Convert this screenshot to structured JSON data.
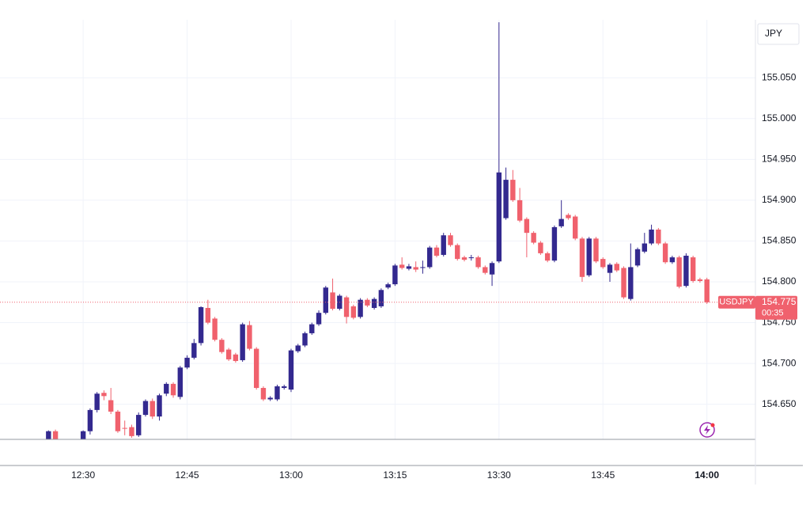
{
  "chart_data": {
    "type": "candlestick",
    "symbol": "USDJPY",
    "currency": "JPY",
    "up_color": "#33298f",
    "down_color": "#f0616d",
    "grid": true,
    "xlim": [
      "12:18",
      "14:07"
    ],
    "ylim": [
      154.607,
      155.121
    ],
    "yticks": [
      {
        "value": 154.65,
        "label": "154.650"
      },
      {
        "value": 154.7,
        "label": "154.700"
      },
      {
        "value": 154.75,
        "label": "154.750"
      },
      {
        "value": 154.8,
        "label": "154.800"
      },
      {
        "value": 154.85,
        "label": "154.850"
      },
      {
        "value": 154.9,
        "label": "154.900"
      },
      {
        "value": 154.95,
        "label": "154.950"
      },
      {
        "value": 155.0,
        "label": "155.000"
      },
      {
        "value": 155.05,
        "label": "155.050"
      }
    ],
    "xticks": [
      "12:30",
      "12:45",
      "13:00",
      "13:15",
      "13:30",
      "13:45",
      "14:00"
    ],
    "last_price": {
      "value": 154.775,
      "label": "154.775"
    },
    "countdown": "00:35",
    "x": [
      "12:25",
      "12:26",
      "12:30",
      "12:31",
      "12:32",
      "12:33",
      "12:34",
      "12:35",
      "12:36",
      "12:37",
      "12:38",
      "12:39",
      "12:40",
      "12:41",
      "12:42",
      "12:43",
      "12:44",
      "12:45",
      "12:46",
      "12:47",
      "12:48",
      "12:49",
      "12:50",
      "12:51",
      "12:52",
      "12:53",
      "12:54",
      "12:55",
      "12:56",
      "12:57",
      "12:58",
      "12:59",
      "13:00",
      "13:01",
      "13:02",
      "13:03",
      "13:04",
      "13:05",
      "13:06",
      "13:07",
      "13:08",
      "13:09",
      "13:10",
      "13:11",
      "13:12",
      "13:13",
      "13:14",
      "13:15",
      "13:16",
      "13:17",
      "13:18",
      "13:19",
      "13:20",
      "13:21",
      "13:22",
      "13:23",
      "13:24",
      "13:25",
      "13:26",
      "13:27",
      "13:28",
      "13:29",
      "13:30",
      "13:31",
      "13:32",
      "13:33",
      "13:34",
      "13:35",
      "13:36",
      "13:37",
      "13:38",
      "13:39",
      "13:40",
      "13:41",
      "13:42",
      "13:43",
      "13:44",
      "13:45",
      "13:46",
      "13:47",
      "13:48",
      "13:49",
      "13:50",
      "13:51",
      "13:52",
      "13:53",
      "13:54",
      "13:55",
      "13:56",
      "13:57",
      "13:58",
      "13:59",
      "14:00"
    ],
    "open": [
      154.605,
      154.617,
      154.605,
      154.617,
      154.643,
      154.664,
      154.655,
      154.641,
      154.621,
      154.622,
      154.612,
      154.637,
      154.654,
      154.635,
      154.663,
      154.675,
      154.659,
      154.695,
      154.707,
      154.725,
      154.768,
      154.755,
      154.729,
      154.717,
      154.711,
      154.704,
      154.747,
      154.718,
      154.67,
      154.656,
      154.656,
      154.67,
      154.668,
      154.715,
      154.722,
      154.737,
      154.748,
      154.762,
      154.787,
      154.767,
      154.781,
      154.77,
      154.757,
      154.778,
      154.768,
      154.77,
      154.793,
      154.797,
      154.821,
      154.816,
      154.818,
      154.817,
      154.818,
      154.842,
      154.833,
      154.857,
      154.845,
      154.83,
      154.829,
      154.83,
      154.818,
      154.809,
      154.825,
      154.878,
      154.925,
      154.9,
      154.877,
      154.86,
      154.848,
      154.835,
      154.826,
      154.868,
      154.882,
      154.88,
      154.853,
      154.808,
      154.853,
      154.828,
      154.811,
      154.822,
      154.817,
      154.779,
      154.82,
      154.837,
      154.847,
      154.864,
      154.847,
      154.824,
      154.83,
      154.795,
      154.83,
      154.803,
      154.803
    ],
    "high": [
      154.618,
      154.619,
      154.618,
      154.645,
      154.665,
      154.667,
      154.67,
      154.643,
      154.63,
      154.625,
      154.64,
      154.656,
      154.657,
      154.663,
      154.677,
      154.677,
      154.697,
      154.71,
      154.73,
      154.77,
      154.778,
      154.757,
      154.731,
      154.719,
      154.713,
      154.75,
      154.752,
      154.72,
      154.672,
      154.66,
      154.674,
      154.674,
      154.718,
      154.724,
      154.739,
      154.75,
      154.765,
      154.795,
      154.804,
      154.785,
      154.783,
      154.772,
      154.78,
      154.78,
      154.781,
      154.792,
      154.799,
      154.822,
      154.83,
      154.822,
      154.825,
      154.826,
      154.844,
      154.845,
      154.86,
      154.86,
      154.847,
      154.832,
      154.833,
      154.832,
      154.82,
      154.825,
      155.118,
      154.94,
      154.937,
      154.915,
      154.879,
      154.862,
      154.85,
      154.837,
      154.869,
      154.9,
      154.884,
      154.882,
      154.855,
      154.855,
      154.855,
      154.83,
      154.823,
      154.824,
      154.819,
      154.847,
      154.842,
      154.86,
      154.87,
      154.866,
      154.849,
      154.832,
      154.832,
      154.835,
      154.832,
      154.805,
      154.805
    ],
    "low": [
      154.6,
      154.6,
      154.6,
      154.613,
      154.64,
      154.655,
      154.638,
      154.615,
      154.612,
      154.609,
      154.61,
      154.635,
      154.632,
      154.63,
      154.66,
      154.658,
      154.656,
      154.693,
      154.705,
      154.722,
      154.748,
      154.727,
      154.712,
      154.703,
      154.701,
      154.702,
      154.716,
      154.668,
      154.654,
      154.654,
      154.654,
      154.668,
      154.665,
      154.713,
      154.72,
      154.735,
      154.746,
      154.76,
      154.765,
      154.765,
      154.749,
      154.754,
      154.755,
      154.769,
      154.766,
      154.768,
      154.791,
      154.795,
      154.815,
      154.814,
      154.812,
      154.81,
      154.816,
      154.83,
      154.831,
      154.843,
      154.826,
      154.825,
      154.826,
      154.816,
      154.809,
      154.795,
      154.823,
      154.876,
      154.898,
      154.873,
      154.83,
      154.846,
      154.833,
      154.824,
      154.824,
      154.866,
      154.876,
      154.851,
      154.8,
      154.806,
      154.823,
      154.816,
      154.8,
      154.812,
      154.779,
      154.777,
      154.818,
      154.835,
      154.845,
      154.845,
      154.822,
      154.822,
      154.792,
      154.793,
      154.799,
      154.799,
      154.773
    ],
    "close": [
      154.617,
      154.605,
      154.617,
      154.643,
      154.663,
      154.66,
      154.641,
      154.617,
      154.62,
      154.611,
      154.637,
      154.654,
      154.635,
      154.661,
      154.675,
      154.661,
      154.695,
      154.707,
      154.725,
      154.769,
      154.75,
      154.729,
      154.714,
      154.705,
      154.703,
      154.748,
      154.718,
      154.67,
      154.656,
      154.658,
      154.672,
      154.672,
      154.716,
      154.722,
      154.737,
      154.748,
      154.762,
      154.793,
      154.767,
      154.783,
      154.757,
      154.756,
      154.778,
      154.771,
      154.779,
      154.79,
      154.797,
      154.82,
      154.817,
      154.819,
      154.815,
      154.818,
      154.842,
      154.832,
      154.857,
      154.845,
      154.828,
      154.827,
      154.83,
      154.818,
      154.811,
      154.823,
      154.934,
      154.925,
      154.9,
      154.875,
      154.86,
      154.848,
      154.835,
      154.826,
      154.867,
      154.877,
      154.878,
      154.853,
      154.806,
      154.853,
      154.825,
      154.818,
      154.821,
      154.814,
      154.781,
      154.818,
      154.84,
      154.847,
      154.864,
      154.847,
      154.824,
      154.83,
      154.794,
      154.832,
      154.801,
      154.801,
      154.775
    ]
  }
}
